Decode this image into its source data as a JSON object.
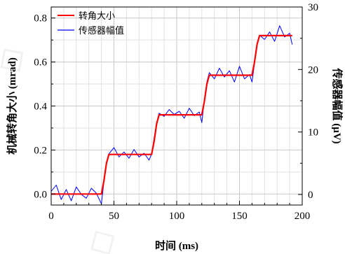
{
  "chart_data": {
    "type": "line",
    "title": "",
    "xlabel": "时间 (ms)",
    "ylabel_left": "机械转角大小 (mrad)",
    "ylabel_right": "传感器幅值 (μV)",
    "xlim": [
      0,
      200
    ],
    "ylim_left": [
      -0.05,
      0.85
    ],
    "ylim_right": [
      -1.6875,
      30
    ],
    "xticks": [
      0,
      50,
      100,
      150,
      200
    ],
    "yticks_left": [
      0.0,
      0.2,
      0.4,
      0.6,
      0.8
    ],
    "yticks_right": [
      0,
      10,
      20,
      30
    ],
    "grid": true,
    "legend_position": "top-left",
    "series": [
      {
        "name": "转角大小",
        "axis": "left",
        "color": "#ff0000",
        "x": [
          0,
          40,
          42,
          44,
          46,
          80,
          82,
          84,
          86,
          120,
          122,
          124,
          126,
          160,
          162,
          164,
          166,
          192
        ],
        "y": [
          0.0,
          0.0,
          0.06,
          0.14,
          0.18,
          0.18,
          0.24,
          0.32,
          0.36,
          0.36,
          0.42,
          0.5,
          0.54,
          0.54,
          0.6,
          0.68,
          0.72,
          0.72
        ]
      },
      {
        "name": "传感器幅值",
        "axis": "right",
        "color": "#0000ff",
        "x": [
          0,
          4,
          8,
          12,
          16,
          20,
          24,
          28,
          32,
          36,
          40,
          42,
          44,
          46,
          50,
          54,
          58,
          62,
          66,
          70,
          74,
          78,
          80,
          82,
          84,
          86,
          90,
          94,
          98,
          102,
          106,
          110,
          114,
          118,
          120,
          122,
          124,
          126,
          130,
          134,
          138,
          142,
          146,
          150,
          154,
          158,
          160,
          162,
          164,
          166,
          170,
          174,
          178,
          182,
          186,
          190,
          192
        ],
        "y": [
          0.5,
          1.5,
          -0.8,
          0.8,
          -1.0,
          1.2,
          0.0,
          -0.6,
          1.0,
          0.2,
          -1.5,
          2.0,
          5.0,
          6.5,
          7.5,
          6.0,
          6.8,
          5.8,
          7.2,
          6.0,
          6.6,
          5.5,
          6.5,
          9.0,
          11.5,
          13.0,
          12.5,
          13.6,
          12.8,
          13.3,
          12.2,
          13.8,
          12.6,
          13.2,
          11.5,
          15.0,
          18.0,
          19.5,
          18.5,
          20.2,
          18.8,
          19.8,
          18.0,
          20.5,
          18.5,
          19.2,
          18.0,
          21.0,
          24.0,
          25.5,
          24.8,
          26.0,
          24.5,
          27.0,
          25.2,
          25.8,
          24.0
        ]
      }
    ]
  }
}
